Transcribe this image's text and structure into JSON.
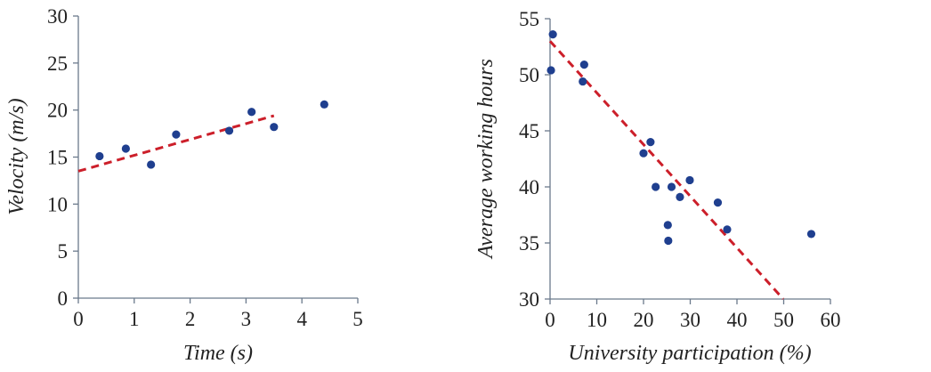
{
  "chart_data": [
    {
      "type": "scatter",
      "xlabel": "Time (s)",
      "ylabel": "Velocity (m/s)",
      "xlim": [
        0,
        5
      ],
      "ylim": [
        0,
        30
      ],
      "xticks": [
        "0",
        "1",
        "2",
        "3",
        "4",
        "5"
      ],
      "yticks": [
        "0",
        "5",
        "10",
        "15",
        "20",
        "25",
        "30"
      ],
      "points": {
        "x": [
          0.38,
          0.85,
          1.3,
          1.75,
          2.7,
          3.1,
          3.5,
          4.4
        ],
        "y": [
          15.1,
          15.9,
          14.2,
          17.4,
          17.8,
          19.8,
          18.2,
          20.6
        ]
      },
      "trendline": {
        "x": [
          0,
          3.5
        ],
        "y": [
          13.5,
          19.4
        ],
        "style": "dashed"
      },
      "grid": false,
      "colors": {
        "points": "#1f3f8f",
        "trendline": "#cc1f2a",
        "axes": "#6b7a8c"
      }
    },
    {
      "type": "scatter",
      "xlabel": "University participation (%)",
      "ylabel": "Average working hours",
      "xlim": [
        0,
        60
      ],
      "ylim": [
        30,
        55
      ],
      "xticks": [
        "0",
        "10",
        "20",
        "30",
        "40",
        "50",
        "60"
      ],
      "yticks": [
        "30",
        "35",
        "40",
        "45",
        "50",
        "55"
      ],
      "points": {
        "x": [
          0.2,
          0.6,
          7.0,
          7.3,
          20.0,
          21.5,
          22.6,
          25.2,
          25.3,
          26.0,
          27.8,
          29.9,
          35.9,
          37.9,
          55.9
        ],
        "y": [
          50.4,
          53.6,
          49.4,
          50.9,
          43.0,
          44.0,
          40.0,
          36.6,
          35.2,
          40.0,
          39.1,
          40.6,
          38.6,
          36.2,
          35.8
        ]
      },
      "trendline": {
        "x": [
          0,
          49.9
        ],
        "y": [
          53.0,
          30.0
        ],
        "style": "dashed"
      },
      "grid": false,
      "colors": {
        "points": "#1f3f8f",
        "trendline": "#cc1f2a",
        "axes": "#6b7a8c"
      }
    }
  ]
}
